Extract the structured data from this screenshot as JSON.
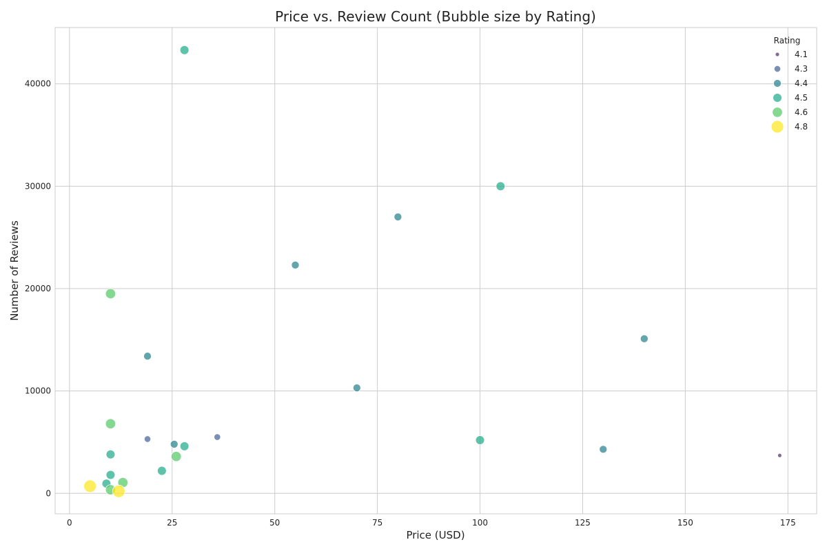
{
  "chart_data": {
    "type": "scatter",
    "title": "Price vs. Review Count (Bubble size by Rating)",
    "xlabel": "Price (USD)",
    "ylabel": "Number of Reviews",
    "xlim": [
      -3.5,
      182
    ],
    "ylim": [
      -2000,
      45500
    ],
    "x_ticks": [
      0,
      25,
      50,
      75,
      100,
      125,
      150,
      175
    ],
    "y_ticks": [
      0,
      10000,
      20000,
      30000,
      40000
    ],
    "grid": true,
    "legend": {
      "title": "Rating",
      "placement": "top-right",
      "entries": [
        {
          "label": "4.1",
          "rating": 4.1,
          "color": "#5b3a6e"
        },
        {
          "label": "4.3",
          "rating": 4.3,
          "color": "#4e6a99"
        },
        {
          "label": "4.4",
          "rating": 4.4,
          "color": "#2f8591"
        },
        {
          "label": "4.5",
          "rating": 4.5,
          "color": "#29ae8e"
        },
        {
          "label": "4.6",
          "rating": 4.6,
          "color": "#5ccb6c"
        },
        {
          "label": "4.8",
          "rating": 4.8,
          "color": "#fde725"
        }
      ]
    },
    "points": [
      {
        "x": 28,
        "y": 43300,
        "rating": 4.5
      },
      {
        "x": 105,
        "y": 30000,
        "rating": 4.5
      },
      {
        "x": 80,
        "y": 27000,
        "rating": 4.4
      },
      {
        "x": 55,
        "y": 22300,
        "rating": 4.4
      },
      {
        "x": 10,
        "y": 19500,
        "rating": 4.6
      },
      {
        "x": 140,
        "y": 15100,
        "rating": 4.4
      },
      {
        "x": 19,
        "y": 13400,
        "rating": 4.4
      },
      {
        "x": 70,
        "y": 10300,
        "rating": 4.4
      },
      {
        "x": 10,
        "y": 6800,
        "rating": 4.6
      },
      {
        "x": 36,
        "y": 5500,
        "rating": 4.3
      },
      {
        "x": 19,
        "y": 5300,
        "rating": 4.3
      },
      {
        "x": 100,
        "y": 5200,
        "rating": 4.5
      },
      {
        "x": 25.5,
        "y": 4800,
        "rating": 4.4
      },
      {
        "x": 28,
        "y": 4600,
        "rating": 4.5
      },
      {
        "x": 130,
        "y": 4300,
        "rating": 4.4
      },
      {
        "x": 10,
        "y": 3800,
        "rating": 4.5
      },
      {
        "x": 173,
        "y": 3700,
        "rating": 4.1
      },
      {
        "x": 26,
        "y": 3600,
        "rating": 4.6
      },
      {
        "x": 22.5,
        "y": 2200,
        "rating": 4.5
      },
      {
        "x": 10,
        "y": 1800,
        "rating": 4.5
      },
      {
        "x": 13,
        "y": 1050,
        "rating": 4.6
      },
      {
        "x": 9,
        "y": 950,
        "rating": 4.5
      },
      {
        "x": 5,
        "y": 700,
        "rating": 4.8
      },
      {
        "x": 10,
        "y": 350,
        "rating": 4.6
      },
      {
        "x": 12,
        "y": 200,
        "rating": 4.8
      }
    ]
  }
}
